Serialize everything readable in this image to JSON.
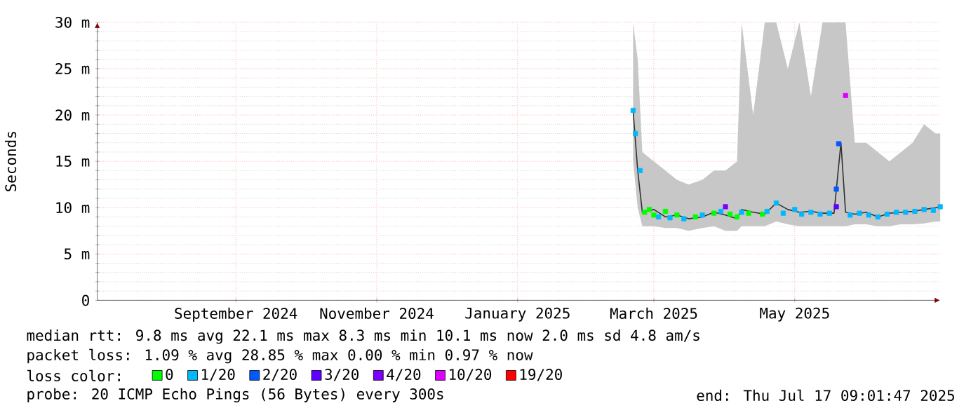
{
  "chart_data": {
    "type": "scatter",
    "ylabel": "Seconds",
    "xlim": [
      "2024-07-17",
      "2025-07-17"
    ],
    "xticks": [
      {
        "value": "2024-09-15",
        "label": "September 2024"
      },
      {
        "value": "2024-11-15",
        "label": "November 2024"
      },
      {
        "value": "2025-01-15",
        "label": "January 2025"
      },
      {
        "value": "2025-03-15",
        "label": "March 2025"
      },
      {
        "value": "2025-05-15",
        "label": "May 2025"
      }
    ],
    "ylim": [
      0,
      30
    ],
    "yticks": [
      0,
      {
        "value": 5,
        "label": "5 m"
      },
      {
        "value": 10,
        "label": "10 m"
      },
      {
        "value": 15,
        "label": "15 m"
      },
      {
        "value": 20,
        "label": "20 m"
      },
      {
        "value": 25,
        "label": "25 m"
      },
      {
        "value": 30,
        "label": "30 m"
      }
    ],
    "grid": true,
    "legend": "bottom",
    "legend_title": "loss color:",
    "marker": "square",
    "series": [
      {
        "type": "line",
        "marker": "none",
        "color": "#303030",
        "x": [
          "2025-03-06",
          "2025-03-08",
          "2025-03-10",
          "2025-03-15",
          "2025-03-20",
          "2025-03-25",
          "2025-03-30",
          "2025-04-05",
          "2025-04-10",
          "2025-04-15",
          "2025-04-20",
          "2025-04-22",
          "2025-04-27",
          "2025-05-02",
          "2025-05-07",
          "2025-05-12",
          "2025-05-17",
          "2025-05-22",
          "2025-05-27",
          "2025-06-01",
          "2025-06-04",
          "2025-06-06",
          "2025-06-10",
          "2025-06-15",
          "2025-06-20",
          "2025-06-25",
          "2025-06-30",
          "2025-07-05",
          "2025-07-10",
          "2025-07-15",
          "2025-07-17"
        ],
        "values": [
          20.5,
          14,
          9.5,
          9.8,
          9,
          9.2,
          8.8,
          9,
          9.5,
          9.2,
          8.8,
          9.8,
          9.5,
          9.3,
          10.5,
          9.8,
          9.5,
          9.6,
          9.4,
          9.4,
          17,
          9.5,
          9.3,
          9.5,
          9,
          9.4,
          9.5,
          9.6,
          9.8,
          10,
          10.1
        ],
        "lower": [
          15,
          10,
          8,
          8,
          7.8,
          7.8,
          7.5,
          7.8,
          8,
          7.5,
          7.5,
          8,
          8,
          8,
          8.5,
          8.2,
          8,
          8,
          8,
          8,
          8,
          8,
          8.2,
          8.2,
          8,
          8,
          8.2,
          8.2,
          8.3,
          8.5,
          8.5
        ],
        "upper": [
          30,
          26,
          16,
          15,
          14,
          13,
          12.5,
          13,
          14,
          14,
          15,
          30,
          20,
          30,
          30,
          25,
          30,
          22,
          30,
          30,
          30,
          30,
          17,
          17,
          16,
          15,
          16,
          17,
          19,
          18,
          18
        ]
      },
      {
        "name": "0",
        "color": "#00ff00",
        "x": [
          "2025-03-11",
          "2025-03-13",
          "2025-03-15",
          "2025-03-20",
          "2025-03-25",
          "2025-04-02",
          "2025-04-10",
          "2025-04-17",
          "2025-04-20",
          "2025-04-25",
          "2025-05-01"
        ],
        "values": [
          9.5,
          9.8,
          9.2,
          9.6,
          9.2,
          9,
          9.4,
          9.3,
          9,
          9.4,
          9.3
        ]
      },
      {
        "name": "1/20",
        "color": "#00b8ff",
        "x": [
          "2025-03-06",
          "2025-03-07",
          "2025-03-09",
          "2025-03-17",
          "2025-03-22",
          "2025-03-28",
          "2025-04-05",
          "2025-04-13",
          "2025-04-22",
          "2025-05-03",
          "2025-05-07",
          "2025-05-10",
          "2025-05-15",
          "2025-05-18",
          "2025-05-22",
          "2025-05-26",
          "2025-05-30",
          "2025-06-08",
          "2025-06-12",
          "2025-06-16",
          "2025-06-20",
          "2025-06-24",
          "2025-06-28",
          "2025-07-02",
          "2025-07-06",
          "2025-07-10",
          "2025-07-14",
          "2025-07-17"
        ],
        "values": [
          20.5,
          18,
          14,
          9,
          8.9,
          8.8,
          9.2,
          9.6,
          9.5,
          9.6,
          10.5,
          9.4,
          9.8,
          9.3,
          9.5,
          9.3,
          9.4,
          9.2,
          9.4,
          9.2,
          9,
          9.3,
          9.5,
          9.5,
          9.6,
          9.8,
          9.7,
          10.1
        ]
      },
      {
        "name": "2/20",
        "color": "#0059ff",
        "x": [
          "2025-06-02",
          "2025-06-03"
        ],
        "values": [
          12,
          16.9
        ]
      },
      {
        "name": "3/20",
        "color": "#5e00ff",
        "x": [
          "2025-06-02"
        ],
        "values": [
          10.1
        ]
      },
      {
        "name": "4/20",
        "color": "#7e00ff",
        "x": [
          "2025-04-15"
        ],
        "values": [
          10.1
        ]
      },
      {
        "name": "10/20",
        "color": "#dd00ff",
        "x": [
          "2025-06-06"
        ],
        "values": [
          22.1
        ]
      },
      {
        "name": "19/20",
        "color": "#ff0000"
      }
    ],
    "annotations": [
      "median rtt:  9.8 ms avg  22.1 ms max  8.3 ms min  10.1 ms now  2.0 ms sd  4.8   am/s",
      "packet loss: 1.09 % avg  28.85 % max  0.00 % min  0.97 % now",
      "probe:       20 ICMP Echo Pings (56 Bytes) every 300s",
      "end: Thu Jul 17 09:01:47 2025"
    ]
  }
}
